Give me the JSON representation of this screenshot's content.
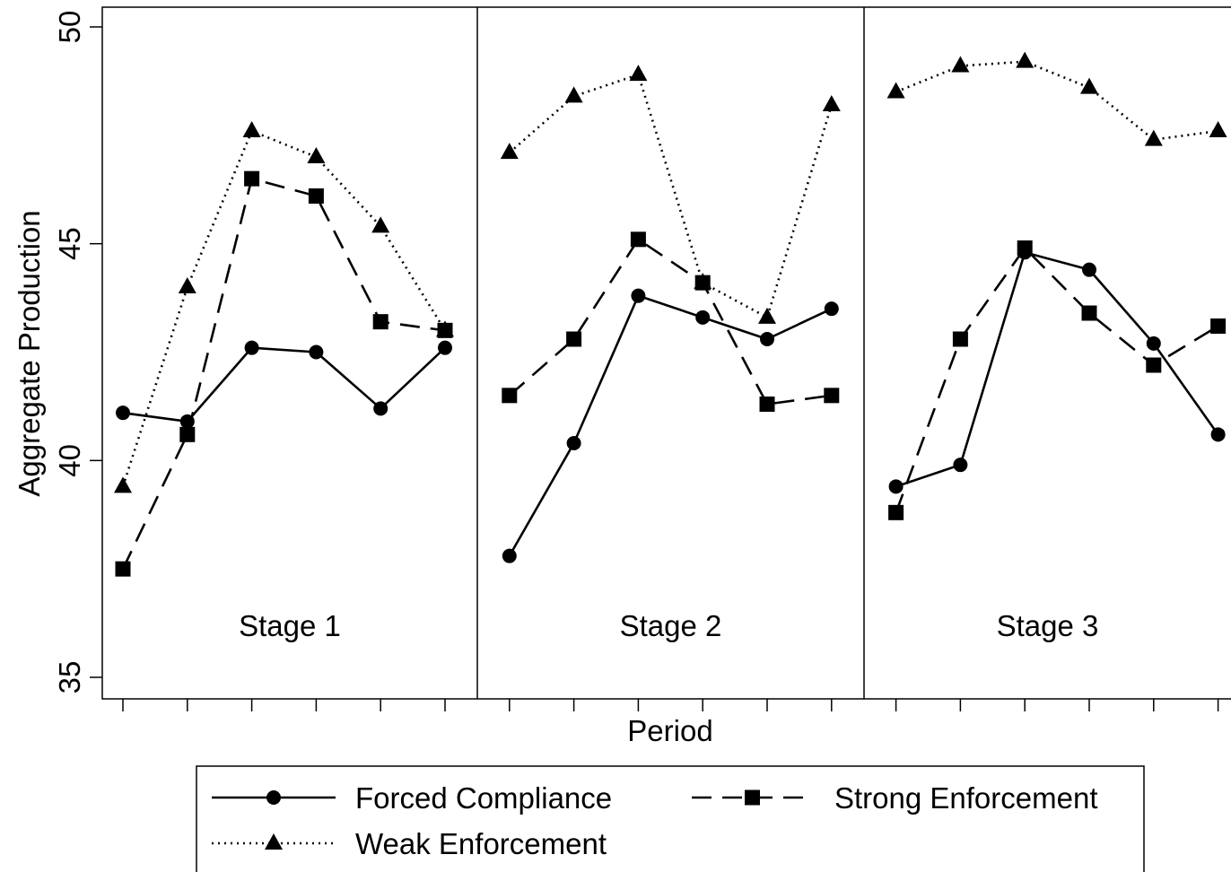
{
  "chart_data": {
    "type": "line",
    "ylabel": "Aggregate Production",
    "xlabel": "Period",
    "ylim": [
      35,
      50
    ],
    "yticks": [
      35,
      40,
      45,
      50
    ],
    "periods_per_stage": 6,
    "stages": [
      {
        "label": "Stage 1",
        "series": [
          {
            "name": "Forced Compliance",
            "values": [
              41.1,
              40.9,
              42.6,
              42.5,
              41.2,
              42.6
            ]
          },
          {
            "name": "Strong Enforcement",
            "values": [
              37.5,
              40.6,
              46.5,
              46.1,
              43.2,
              43.0
            ]
          },
          {
            "name": "Weak Enforcement",
            "values": [
              39.4,
              44.0,
              47.6,
              47.0,
              45.4,
              43.0
            ]
          }
        ]
      },
      {
        "label": "Stage 2",
        "series": [
          {
            "name": "Forced Compliance",
            "values": [
              37.8,
              40.4,
              43.8,
              43.3,
              42.8,
              43.5
            ]
          },
          {
            "name": "Strong Enforcement",
            "values": [
              41.5,
              42.8,
              45.1,
              44.1,
              41.3,
              41.5
            ]
          },
          {
            "name": "Weak Enforcement",
            "values": [
              47.1,
              48.4,
              48.9,
              44.1,
              43.3,
              48.2
            ]
          }
        ]
      },
      {
        "label": "Stage 3",
        "series": [
          {
            "name": "Forced Compliance",
            "values": [
              39.4,
              39.9,
              44.8,
              44.4,
              42.7,
              40.6
            ]
          },
          {
            "name": "Strong Enforcement",
            "values": [
              38.8,
              42.8,
              44.9,
              43.4,
              42.2,
              43.1
            ]
          },
          {
            "name": "Weak Enforcement",
            "values": [
              48.5,
              49.1,
              49.2,
              48.6,
              47.4,
              47.6
            ]
          }
        ]
      }
    ],
    "legend": {
      "placement": "bottom",
      "entries": [
        {
          "name": "Forced Compliance",
          "line": "solid",
          "marker": "circle"
        },
        {
          "name": "Strong Enforcement",
          "line": "dashed",
          "marker": "square"
        },
        {
          "name": "Weak Enforcement",
          "line": "dotted",
          "marker": "triangle"
        }
      ]
    },
    "grid": false,
    "colors": {
      "line": "#000000",
      "background": "#ffffff"
    }
  }
}
